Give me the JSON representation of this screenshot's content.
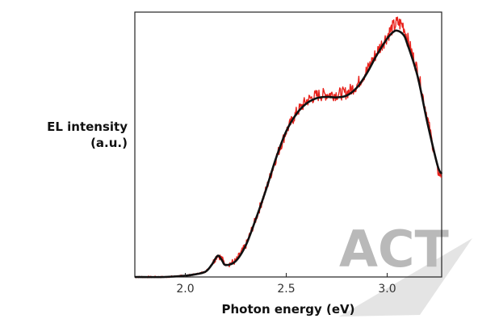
{
  "chart_data": {
    "type": "line",
    "title": "",
    "xlabel": "Photon energy (eV)",
    "ylabel_lines": [
      "EL intensity",
      "(a.u.)"
    ],
    "xlim": [
      1.75,
      3.27
    ],
    "ylim": [
      0,
      1.0
    ],
    "xticks": [
      2.0,
      2.5,
      3.0
    ],
    "xtick_labels": [
      "2.0",
      "2.5",
      "3.0"
    ],
    "grid": false,
    "legend": "none",
    "series": [
      {
        "color": "#e8221c",
        "style": "noisy measured spectrum",
        "x": [
          1.75,
          1.9,
          2.0,
          2.05,
          2.1,
          2.13,
          2.16,
          2.18,
          2.2,
          2.25,
          2.3,
          2.35,
          2.4,
          2.45,
          2.5,
          2.55,
          2.6,
          2.65,
          2.7,
          2.75,
          2.8,
          2.85,
          2.9,
          2.95,
          3.0,
          3.02,
          3.05,
          3.08,
          3.1,
          3.15,
          3.2,
          3.25,
          3.27
        ],
        "y": [
          0.0,
          0.0,
          0.005,
          0.01,
          0.02,
          0.045,
          0.085,
          0.07,
          0.045,
          0.06,
          0.12,
          0.22,
          0.33,
          0.45,
          0.55,
          0.62,
          0.665,
          0.685,
          0.69,
          0.69,
          0.695,
          0.725,
          0.78,
          0.85,
          0.91,
          0.935,
          0.96,
          0.95,
          0.9,
          0.78,
          0.6,
          0.4,
          0.38
        ]
      },
      {
        "color": "#111111",
        "style": "smooth fit",
        "x": [
          1.75,
          1.9,
          2.0,
          2.05,
          2.1,
          2.13,
          2.16,
          2.18,
          2.2,
          2.25,
          2.3,
          2.35,
          2.4,
          2.45,
          2.5,
          2.55,
          2.6,
          2.65,
          2.7,
          2.75,
          2.8,
          2.85,
          2.9,
          2.95,
          3.0,
          3.03,
          3.05,
          3.08,
          3.1,
          3.15,
          3.2,
          3.25,
          3.27
        ],
        "y": [
          0.0,
          0.0,
          0.005,
          0.01,
          0.02,
          0.045,
          0.08,
          0.065,
          0.045,
          0.06,
          0.12,
          0.22,
          0.33,
          0.45,
          0.55,
          0.615,
          0.655,
          0.675,
          0.68,
          0.678,
          0.685,
          0.715,
          0.77,
          0.84,
          0.9,
          0.925,
          0.93,
          0.915,
          0.88,
          0.76,
          0.58,
          0.42,
          0.39
        ]
      }
    ]
  },
  "watermark": {
    "text": "ACT",
    "color": "#b9b9b9"
  }
}
